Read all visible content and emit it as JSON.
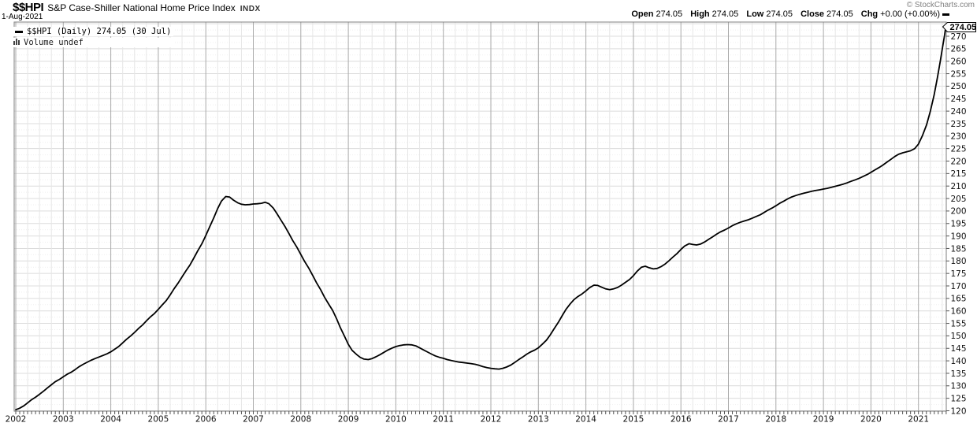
{
  "header": {
    "symbol": "$$HPI",
    "title": "S&P Case-Shiller National Home Price Index",
    "exchange": "INDX",
    "date": "1-Aug-2021",
    "copyright": "© StockCharts.com"
  },
  "quote": {
    "open_label": "Open",
    "open": "274.05",
    "high_label": "High",
    "high": "274.05",
    "low_label": "Low",
    "low": "274.05",
    "close_label": "Close",
    "close": "274.05",
    "chg_label": "Chg",
    "chg": "+0.00 (+0.00%)"
  },
  "legend": {
    "series_label": "$$HPI (Daily) 274.05 (30 Jul)",
    "volume_label": "Volume undef"
  },
  "chart_data": {
    "type": "line",
    "title": "S&P Case-Shiller National Home Price Index",
    "symbol": "$$HPI",
    "last_price": "274.05",
    "line_color": "#000000",
    "grid": true,
    "legend_position": "top-left",
    "x_tick_labels": [
      "2002",
      "2003",
      "2004",
      "2005",
      "2006",
      "2007",
      "2008",
      "2009",
      "2010",
      "2011",
      "2012",
      "2013",
      "2014",
      "2015",
      "2016",
      "2017",
      "2018",
      "2019",
      "2020",
      "2021"
    ],
    "y_ticks": [
      120,
      125,
      130,
      135,
      140,
      145,
      150,
      155,
      160,
      165,
      170,
      175,
      180,
      185,
      190,
      195,
      200,
      205,
      210,
      215,
      220,
      225,
      230,
      235,
      240,
      245,
      250,
      255,
      260,
      265,
      270
    ],
    "ylim": [
      118.4,
      275.6
    ],
    "xlim": [
      2001.97,
      2021.6
    ],
    "series": [
      {
        "name": "$$HPI",
        "points": [
          [
            2002.0,
            120.4
          ],
          [
            2002.08,
            121.0
          ],
          [
            2002.17,
            122.0
          ],
          [
            2002.25,
            123.2
          ],
          [
            2002.33,
            124.4
          ],
          [
            2002.42,
            125.5
          ],
          [
            2002.5,
            126.6
          ],
          [
            2002.58,
            127.8
          ],
          [
            2002.67,
            129.2
          ],
          [
            2002.75,
            130.4
          ],
          [
            2002.83,
            131.6
          ],
          [
            2002.92,
            132.6
          ],
          [
            2003.0,
            133.6
          ],
          [
            2003.08,
            134.6
          ],
          [
            2003.17,
            135.5
          ],
          [
            2003.25,
            136.5
          ],
          [
            2003.33,
            137.6
          ],
          [
            2003.42,
            138.6
          ],
          [
            2003.5,
            139.4
          ],
          [
            2003.58,
            140.2
          ],
          [
            2003.67,
            140.9
          ],
          [
            2003.75,
            141.5
          ],
          [
            2003.83,
            142.1
          ],
          [
            2003.92,
            142.8
          ],
          [
            2004.0,
            143.6
          ],
          [
            2004.08,
            144.6
          ],
          [
            2004.17,
            145.8
          ],
          [
            2004.25,
            147.2
          ],
          [
            2004.33,
            148.6
          ],
          [
            2004.42,
            150.0
          ],
          [
            2004.5,
            151.4
          ],
          [
            2004.58,
            152.9
          ],
          [
            2004.67,
            154.4
          ],
          [
            2004.75,
            156.0
          ],
          [
            2004.83,
            157.5
          ],
          [
            2004.92,
            159.0
          ],
          [
            2005.0,
            160.6
          ],
          [
            2005.08,
            162.3
          ],
          [
            2005.17,
            164.2
          ],
          [
            2005.25,
            166.4
          ],
          [
            2005.33,
            168.8
          ],
          [
            2005.42,
            171.2
          ],
          [
            2005.5,
            173.6
          ],
          [
            2005.58,
            176.0
          ],
          [
            2005.67,
            178.5
          ],
          [
            2005.75,
            181.2
          ],
          [
            2005.83,
            184.0
          ],
          [
            2005.92,
            187.0
          ],
          [
            2006.0,
            190.2
          ],
          [
            2006.08,
            193.6
          ],
          [
            2006.17,
            197.4
          ],
          [
            2006.25,
            201.0
          ],
          [
            2006.33,
            204.0
          ],
          [
            2006.42,
            205.8
          ],
          [
            2006.5,
            205.6
          ],
          [
            2006.58,
            204.4
          ],
          [
            2006.67,
            203.3
          ],
          [
            2006.75,
            202.7
          ],
          [
            2006.83,
            202.5
          ],
          [
            2006.92,
            202.6
          ],
          [
            2007.0,
            202.8
          ],
          [
            2007.08,
            202.9
          ],
          [
            2007.17,
            203.1
          ],
          [
            2007.25,
            203.5
          ],
          [
            2007.33,
            202.9
          ],
          [
            2007.42,
            201.2
          ],
          [
            2007.5,
            198.9
          ],
          [
            2007.58,
            196.4
          ],
          [
            2007.67,
            193.7
          ],
          [
            2007.75,
            191.0
          ],
          [
            2007.83,
            188.2
          ],
          [
            2007.92,
            185.4
          ],
          [
            2008.0,
            182.6
          ],
          [
            2008.08,
            179.8
          ],
          [
            2008.17,
            177.0
          ],
          [
            2008.25,
            174.2
          ],
          [
            2008.33,
            171.3
          ],
          [
            2008.42,
            168.4
          ],
          [
            2008.5,
            165.5
          ],
          [
            2008.58,
            162.9
          ],
          [
            2008.67,
            160.2
          ],
          [
            2008.75,
            157.0
          ],
          [
            2008.83,
            153.4
          ],
          [
            2008.92,
            149.8
          ],
          [
            2009.0,
            146.6
          ],
          [
            2009.08,
            144.2
          ],
          [
            2009.17,
            142.6
          ],
          [
            2009.25,
            141.4
          ],
          [
            2009.33,
            140.7
          ],
          [
            2009.42,
            140.5
          ],
          [
            2009.5,
            140.9
          ],
          [
            2009.58,
            141.6
          ],
          [
            2009.67,
            142.5
          ],
          [
            2009.75,
            143.4
          ],
          [
            2009.83,
            144.3
          ],
          [
            2009.92,
            145.1
          ],
          [
            2010.0,
            145.7
          ],
          [
            2010.08,
            146.1
          ],
          [
            2010.17,
            146.4
          ],
          [
            2010.25,
            146.5
          ],
          [
            2010.33,
            146.4
          ],
          [
            2010.42,
            146.0
          ],
          [
            2010.5,
            145.2
          ],
          [
            2010.58,
            144.4
          ],
          [
            2010.67,
            143.5
          ],
          [
            2010.75,
            142.7
          ],
          [
            2010.83,
            142.0
          ],
          [
            2010.92,
            141.4
          ],
          [
            2011.0,
            141.0
          ],
          [
            2011.08,
            140.5
          ],
          [
            2011.17,
            140.1
          ],
          [
            2011.25,
            139.8
          ],
          [
            2011.33,
            139.5
          ],
          [
            2011.42,
            139.3
          ],
          [
            2011.5,
            139.1
          ],
          [
            2011.58,
            138.9
          ],
          [
            2011.67,
            138.6
          ],
          [
            2011.75,
            138.2
          ],
          [
            2011.83,
            137.7
          ],
          [
            2011.92,
            137.3
          ],
          [
            2012.0,
            137.0
          ],
          [
            2012.08,
            136.8
          ],
          [
            2012.17,
            136.7
          ],
          [
            2012.25,
            137.0
          ],
          [
            2012.33,
            137.5
          ],
          [
            2012.42,
            138.3
          ],
          [
            2012.5,
            139.3
          ],
          [
            2012.58,
            140.4
          ],
          [
            2012.67,
            141.5
          ],
          [
            2012.75,
            142.6
          ],
          [
            2012.83,
            143.5
          ],
          [
            2012.92,
            144.3
          ],
          [
            2013.0,
            145.2
          ],
          [
            2013.08,
            146.6
          ],
          [
            2013.17,
            148.3
          ],
          [
            2013.25,
            150.4
          ],
          [
            2013.33,
            152.8
          ],
          [
            2013.42,
            155.4
          ],
          [
            2013.5,
            158.0
          ],
          [
            2013.58,
            160.6
          ],
          [
            2013.67,
            162.8
          ],
          [
            2013.75,
            164.5
          ],
          [
            2013.83,
            165.7
          ],
          [
            2013.92,
            166.8
          ],
          [
            2014.0,
            168.0
          ],
          [
            2014.08,
            169.3
          ],
          [
            2014.17,
            170.3
          ],
          [
            2014.25,
            170.2
          ],
          [
            2014.33,
            169.5
          ],
          [
            2014.42,
            168.8
          ],
          [
            2014.5,
            168.5
          ],
          [
            2014.58,
            168.8
          ],
          [
            2014.67,
            169.4
          ],
          [
            2014.75,
            170.3
          ],
          [
            2014.83,
            171.4
          ],
          [
            2014.92,
            172.6
          ],
          [
            2015.0,
            174.1
          ],
          [
            2015.08,
            175.9
          ],
          [
            2015.17,
            177.5
          ],
          [
            2015.25,
            177.9
          ],
          [
            2015.33,
            177.3
          ],
          [
            2015.42,
            176.8
          ],
          [
            2015.5,
            177.0
          ],
          [
            2015.58,
            177.7
          ],
          [
            2015.67,
            178.8
          ],
          [
            2015.75,
            180.1
          ],
          [
            2015.83,
            181.5
          ],
          [
            2015.92,
            183.0
          ],
          [
            2016.0,
            184.6
          ],
          [
            2016.08,
            186.0
          ],
          [
            2016.17,
            186.9
          ],
          [
            2016.25,
            186.6
          ],
          [
            2016.33,
            186.4
          ],
          [
            2016.42,
            186.8
          ],
          [
            2016.5,
            187.6
          ],
          [
            2016.58,
            188.6
          ],
          [
            2016.67,
            189.7
          ],
          [
            2016.75,
            190.7
          ],
          [
            2016.83,
            191.6
          ],
          [
            2016.92,
            192.4
          ],
          [
            2017.0,
            193.2
          ],
          [
            2017.08,
            194.1
          ],
          [
            2017.17,
            194.9
          ],
          [
            2017.25,
            195.5
          ],
          [
            2017.33,
            196.0
          ],
          [
            2017.42,
            196.5
          ],
          [
            2017.5,
            197.1
          ],
          [
            2017.58,
            197.8
          ],
          [
            2017.67,
            198.5
          ],
          [
            2017.75,
            199.4
          ],
          [
            2017.83,
            200.3
          ],
          [
            2017.92,
            201.2
          ],
          [
            2018.0,
            202.1
          ],
          [
            2018.08,
            203.1
          ],
          [
            2018.17,
            204.0
          ],
          [
            2018.25,
            204.9
          ],
          [
            2018.33,
            205.6
          ],
          [
            2018.42,
            206.2
          ],
          [
            2018.5,
            206.7
          ],
          [
            2018.58,
            207.1
          ],
          [
            2018.67,
            207.5
          ],
          [
            2018.75,
            207.9
          ],
          [
            2018.83,
            208.2
          ],
          [
            2018.92,
            208.5
          ],
          [
            2019.0,
            208.8
          ],
          [
            2019.08,
            209.1
          ],
          [
            2019.17,
            209.5
          ],
          [
            2019.25,
            209.9
          ],
          [
            2019.33,
            210.3
          ],
          [
            2019.42,
            210.8
          ],
          [
            2019.5,
            211.3
          ],
          [
            2019.58,
            211.9
          ],
          [
            2019.67,
            212.5
          ],
          [
            2019.75,
            213.1
          ],
          [
            2019.83,
            213.8
          ],
          [
            2019.92,
            214.6
          ],
          [
            2020.0,
            215.5
          ],
          [
            2020.08,
            216.4
          ],
          [
            2020.17,
            217.4
          ],
          [
            2020.25,
            218.4
          ],
          [
            2020.33,
            219.5
          ],
          [
            2020.42,
            220.7
          ],
          [
            2020.5,
            221.8
          ],
          [
            2020.58,
            222.7
          ],
          [
            2020.67,
            223.3
          ],
          [
            2020.75,
            223.7
          ],
          [
            2020.83,
            224.1
          ],
          [
            2020.92,
            225.0
          ],
          [
            2021.0,
            226.8
          ],
          [
            2021.08,
            230.0
          ],
          [
            2021.17,
            234.5
          ],
          [
            2021.25,
            240.0
          ],
          [
            2021.33,
            246.5
          ],
          [
            2021.4,
            253.5
          ],
          [
            2021.46,
            260.0
          ],
          [
            2021.51,
            266.0
          ],
          [
            2021.55,
            270.5
          ],
          [
            2021.58,
            274.05
          ]
        ]
      }
    ]
  }
}
